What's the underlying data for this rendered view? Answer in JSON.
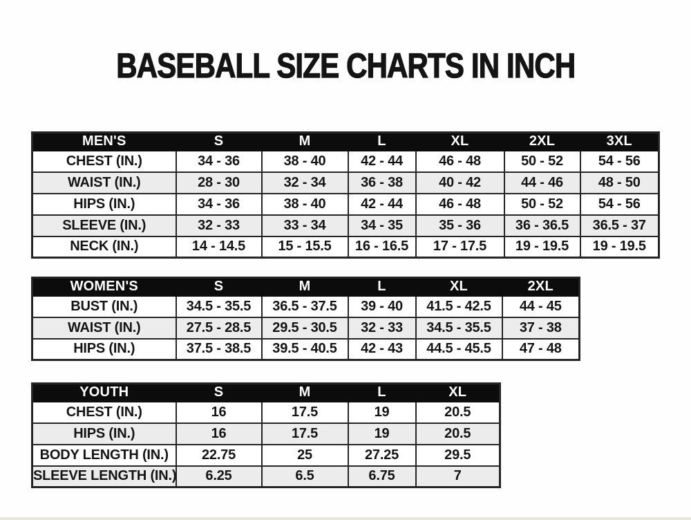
{
  "page": {
    "title": "BASEBALL SIZE CHARTS IN INCH"
  },
  "colors": {
    "page_bg": "#fefefe",
    "header_bg": "#0c0c0c",
    "header_text": "#ffffff",
    "row_odd_bg": "#ffffff",
    "row_even_bg": "#ececec",
    "border": "#252525",
    "text": "#141414"
  },
  "chart_data": [
    {
      "type": "table",
      "name": "mens-size-chart",
      "header": [
        "MEN'S",
        "S",
        "M",
        "L",
        "XL",
        "2XL",
        "3XL"
      ],
      "rows": [
        [
          "CHEST (IN.)",
          "34 - 36",
          "38 - 40",
          "42 - 44",
          "46 - 48",
          "50 - 52",
          "54 - 56"
        ],
        [
          "WAIST (IN.)",
          "28 - 30",
          "32 - 34",
          "36 - 38",
          "40 - 42",
          "44 - 46",
          "48 - 50"
        ],
        [
          "HIPS (IN.)",
          "34 - 36",
          "38 - 40",
          "42 - 44",
          "46 - 48",
          "50 - 52",
          "54 - 56"
        ],
        [
          "SLEEVE (IN.)",
          "32 - 33",
          "33 - 34",
          "34 - 35",
          "35 - 36",
          "36 - 36.5",
          "36.5 - 37"
        ],
        [
          "NECK (IN.)",
          "14 - 14.5",
          "15 - 15.5",
          "16 - 16.5",
          "17 - 17.5",
          "19 - 19.5",
          "19 - 19.5"
        ]
      ]
    },
    {
      "type": "table",
      "name": "womens-size-chart",
      "header": [
        "WOMEN'S",
        "S",
        "M",
        "L",
        "XL",
        "2XL"
      ],
      "rows": [
        [
          "BUST (IN.)",
          "34.5 - 35.5",
          "36.5 - 37.5",
          "39 - 40",
          "41.5 - 42.5",
          "44 - 45"
        ],
        [
          "WAIST (IN.)",
          "27.5 - 28.5",
          "29.5 - 30.5",
          "32 - 33",
          "34.5 - 35.5",
          "37 - 38"
        ],
        [
          "HIPS (IN.)",
          "37.5 - 38.5",
          "39.5 - 40.5",
          "42 - 43",
          "44.5 - 45.5",
          "47 - 48"
        ]
      ]
    },
    {
      "type": "table",
      "name": "youth-size-chart",
      "header": [
        "YOUTH",
        "S",
        "M",
        "L",
        "XL"
      ],
      "rows": [
        [
          "CHEST (IN.)",
          "16",
          "17.5",
          "19",
          "20.5"
        ],
        [
          "HIPS (IN.)",
          "16",
          "17.5",
          "19",
          "20.5"
        ],
        [
          "BODY LENGTH (IN.)",
          "22.75",
          "25",
          "27.25",
          "29.5"
        ],
        [
          "SLEEVE LENGTH (IN.)",
          "6.25",
          "6.5",
          "6.75",
          "7"
        ]
      ]
    }
  ]
}
